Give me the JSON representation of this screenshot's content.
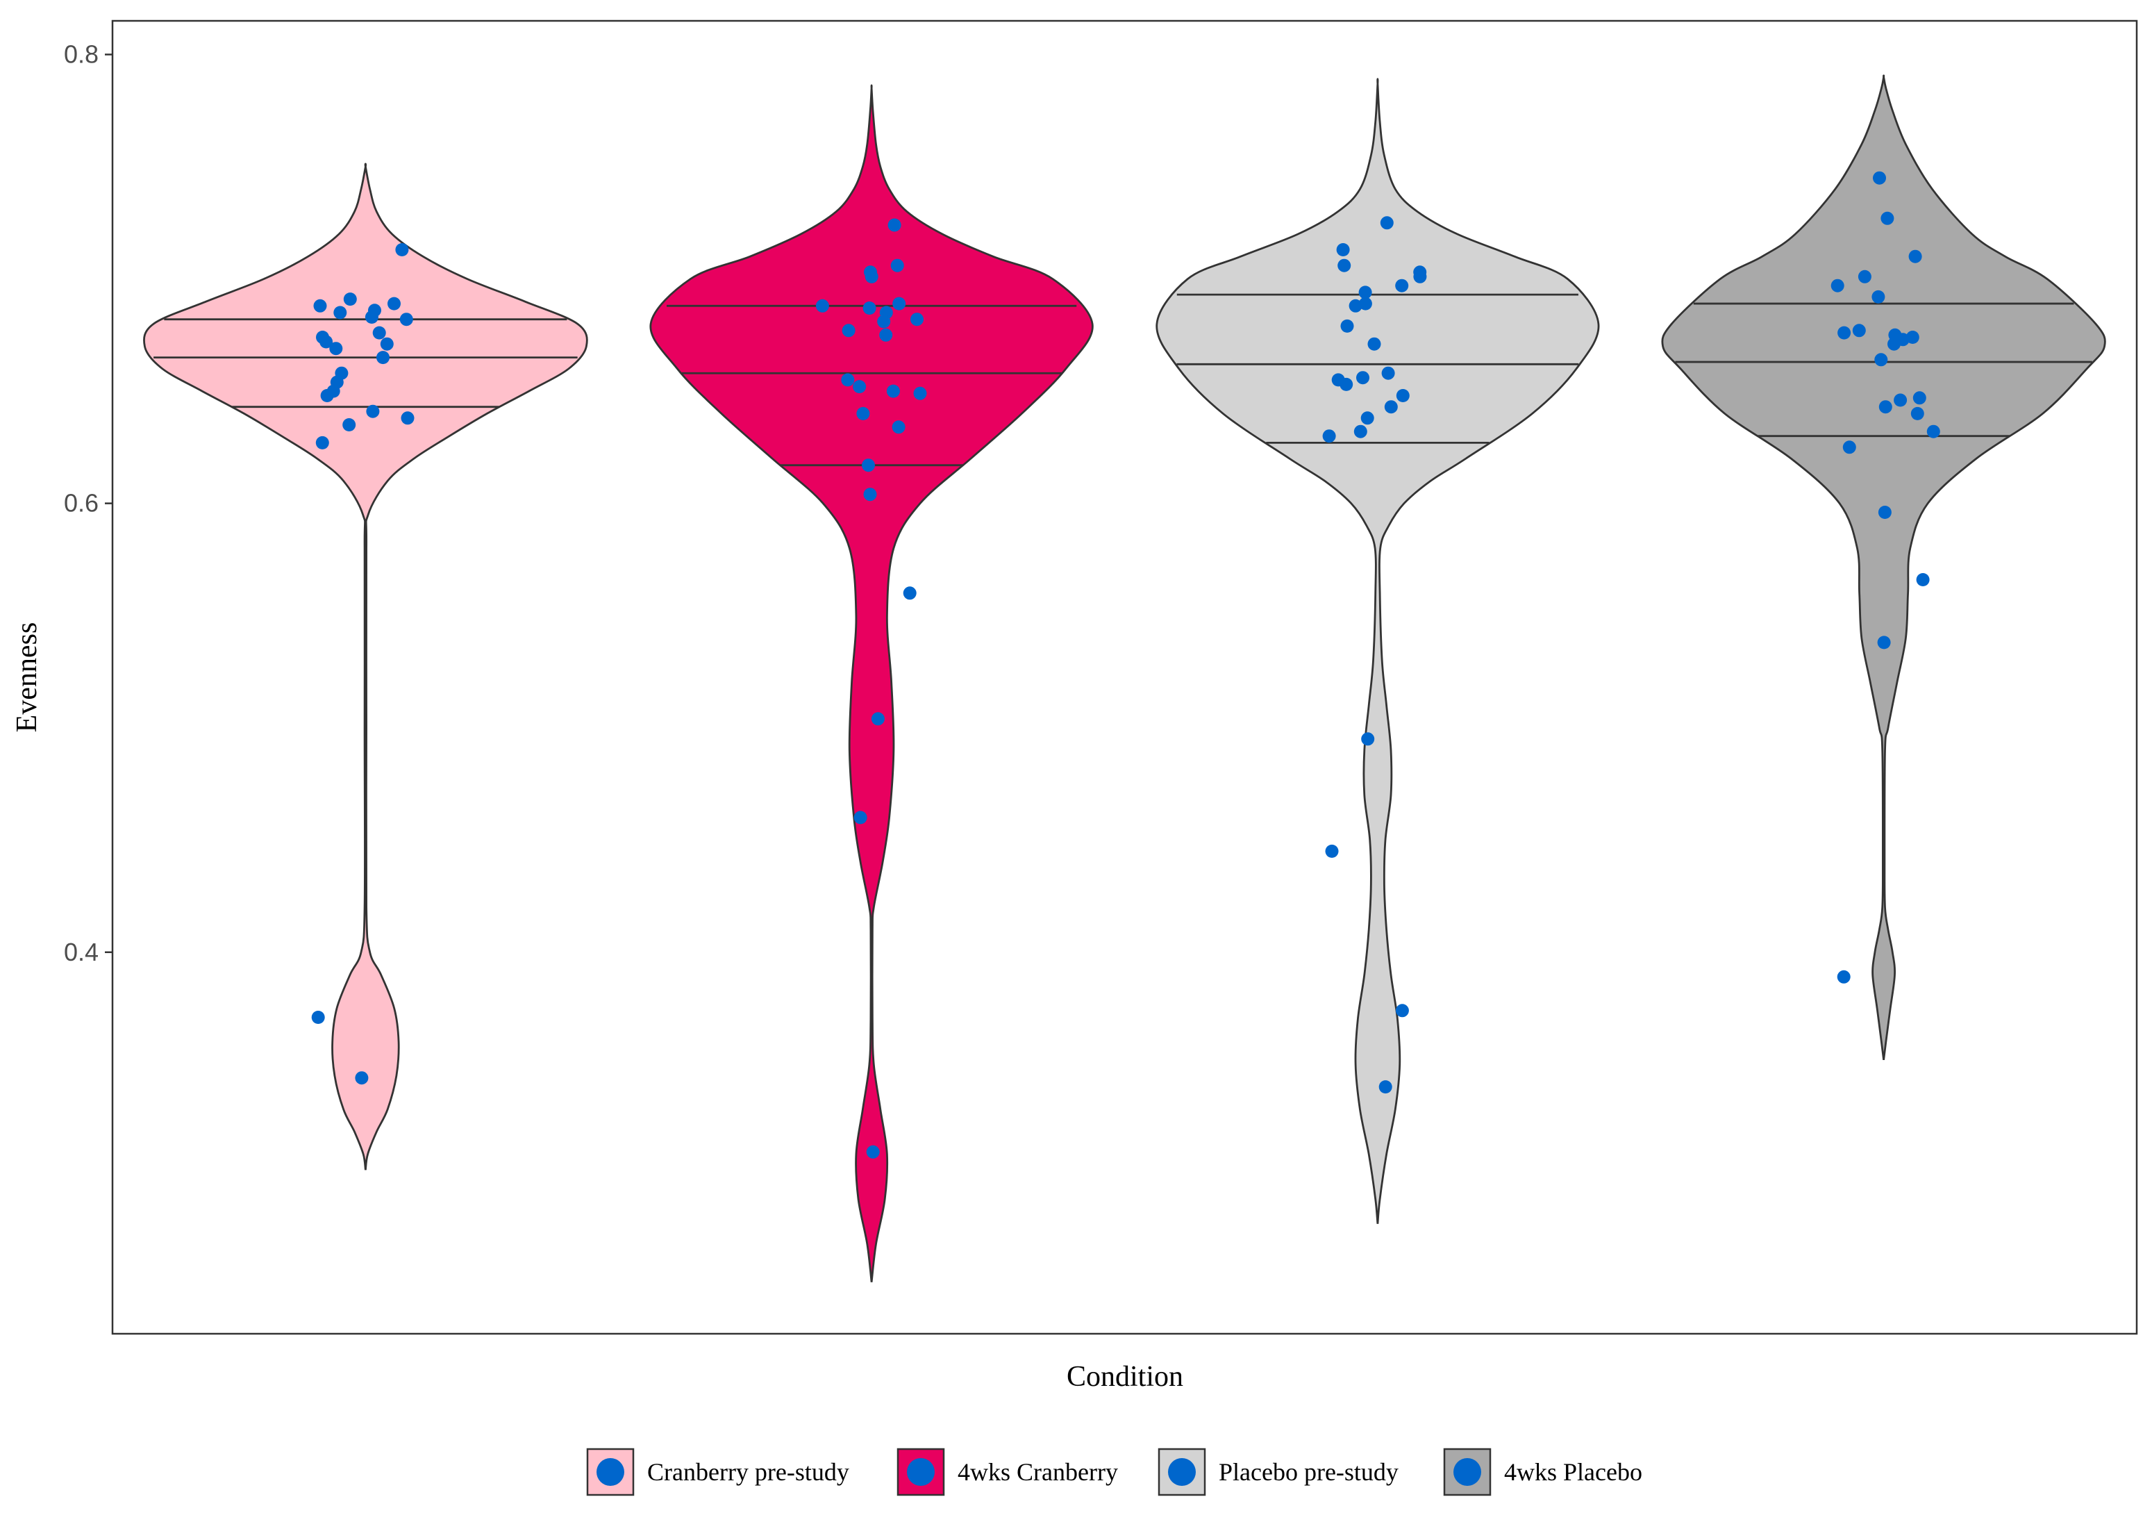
{
  "chart_data": {
    "type": "violin",
    "title": "",
    "xlabel": "Condition",
    "ylabel": "Evenness",
    "ylim": [
      0.23,
      0.815
    ],
    "yticks": [
      0.4,
      0.6,
      0.8
    ],
    "ytick_labels": [
      "0.4",
      "0.6",
      "0.8"
    ],
    "grid": false,
    "legend_position": "bottom",
    "point_color": "#0066CC",
    "series": [
      {
        "name": "Cranberry pre-study",
        "color": "#FFC0CB",
        "quantiles": [
          0.643,
          0.665,
          0.682
        ],
        "density": [
          [
            0.303,
            0
          ],
          [
            0.31,
            0.01
          ],
          [
            0.32,
            0.05
          ],
          [
            0.33,
            0.1
          ],
          [
            0.345,
            0.14
          ],
          [
            0.36,
            0.15
          ],
          [
            0.375,
            0.13
          ],
          [
            0.39,
            0.07
          ],
          [
            0.4,
            0.02
          ],
          [
            0.42,
            0.004
          ],
          [
            0.5,
            0.004
          ],
          [
            0.58,
            0.004
          ],
          [
            0.595,
            0.012
          ],
          [
            0.61,
            0.1
          ],
          [
            0.62,
            0.22
          ],
          [
            0.63,
            0.38
          ],
          [
            0.64,
            0.55
          ],
          [
            0.65,
            0.74
          ],
          [
            0.66,
            0.92
          ],
          [
            0.67,
            1.0
          ],
          [
            0.68,
            0.96
          ],
          [
            0.69,
            0.72
          ],
          [
            0.7,
            0.46
          ],
          [
            0.71,
            0.26
          ],
          [
            0.72,
            0.12
          ],
          [
            0.73,
            0.05
          ],
          [
            0.74,
            0.02
          ],
          [
            0.75,
            0
          ]
        ],
        "points": [
          0.713,
          0.691,
          0.689,
          0.688,
          0.686,
          0.685,
          0.683,
          0.682,
          0.676,
          0.674,
          0.672,
          0.671,
          0.669,
          0.665,
          0.658,
          0.654,
          0.65,
          0.648,
          0.641,
          0.638,
          0.635,
          0.627,
          0.371,
          0.344
        ]
      },
      {
        "name": "4wks Cranberry",
        "color": "#E8005F",
        "quantiles": [
          0.617,
          0.658,
          0.688
        ],
        "density": [
          [
            0.253,
            0
          ],
          [
            0.27,
            0.02
          ],
          [
            0.29,
            0.06
          ],
          [
            0.31,
            0.07
          ],
          [
            0.33,
            0.04
          ],
          [
            0.35,
            0.01
          ],
          [
            0.37,
            0.004
          ],
          [
            0.41,
            0.004
          ],
          [
            0.42,
            0.01
          ],
          [
            0.44,
            0.05
          ],
          [
            0.46,
            0.08
          ],
          [
            0.49,
            0.1
          ],
          [
            0.52,
            0.09
          ],
          [
            0.55,
            0.07
          ],
          [
            0.58,
            0.1
          ],
          [
            0.6,
            0.22
          ],
          [
            0.62,
            0.45
          ],
          [
            0.64,
            0.68
          ],
          [
            0.66,
            0.88
          ],
          [
            0.68,
            1.0
          ],
          [
            0.7,
            0.82
          ],
          [
            0.71,
            0.55
          ],
          [
            0.72,
            0.32
          ],
          [
            0.73,
            0.16
          ],
          [
            0.74,
            0.08
          ],
          [
            0.75,
            0.04
          ],
          [
            0.76,
            0.02
          ],
          [
            0.775,
            0.006
          ],
          [
            0.785,
            0
          ]
        ],
        "points": [
          0.724,
          0.706,
          0.703,
          0.701,
          0.689,
          0.688,
          0.687,
          0.685,
          0.682,
          0.681,
          0.677,
          0.675,
          0.655,
          0.652,
          0.65,
          0.649,
          0.64,
          0.634,
          0.617,
          0.604,
          0.56,
          0.504,
          0.46,
          0.311
        ]
      },
      {
        "name": "Placebo pre-study",
        "color": "#D3D3D3",
        "quantiles": [
          0.627,
          0.662,
          0.693
        ],
        "density": [
          [
            0.279,
            0
          ],
          [
            0.29,
            0.01
          ],
          [
            0.31,
            0.04
          ],
          [
            0.33,
            0.08
          ],
          [
            0.35,
            0.1
          ],
          [
            0.37,
            0.09
          ],
          [
            0.39,
            0.06
          ],
          [
            0.41,
            0.04
          ],
          [
            0.43,
            0.03
          ],
          [
            0.45,
            0.035
          ],
          [
            0.47,
            0.06
          ],
          [
            0.49,
            0.06
          ],
          [
            0.51,
            0.04
          ],
          [
            0.53,
            0.02
          ],
          [
            0.56,
            0.01
          ],
          [
            0.58,
            0.012
          ],
          [
            0.59,
            0.05
          ],
          [
            0.6,
            0.12
          ],
          [
            0.61,
            0.24
          ],
          [
            0.62,
            0.4
          ],
          [
            0.64,
            0.7
          ],
          [
            0.66,
            0.9
          ],
          [
            0.68,
            1.0
          ],
          [
            0.7,
            0.86
          ],
          [
            0.71,
            0.62
          ],
          [
            0.72,
            0.36
          ],
          [
            0.73,
            0.18
          ],
          [
            0.74,
            0.08
          ],
          [
            0.755,
            0.03
          ],
          [
            0.77,
            0.01
          ],
          [
            0.787,
            0
          ]
        ],
        "points": [
          0.725,
          0.713,
          0.706,
          0.703,
          0.701,
          0.697,
          0.694,
          0.689,
          0.688,
          0.679,
          0.671,
          0.658,
          0.656,
          0.655,
          0.653,
          0.648,
          0.643,
          0.638,
          0.632,
          0.63,
          0.495,
          0.445,
          0.374,
          0.34
        ]
      },
      {
        "name": "4wks Placebo",
        "color": "#A9A9A9",
        "quantiles": [
          0.63,
          0.663,
          0.689
        ],
        "density": [
          [
            0.352,
            0
          ],
          [
            0.36,
            0.01
          ],
          [
            0.375,
            0.03
          ],
          [
            0.39,
            0.05
          ],
          [
            0.4,
            0.04
          ],
          [
            0.41,
            0.02
          ],
          [
            0.42,
            0.006
          ],
          [
            0.44,
            0.004
          ],
          [
            0.49,
            0.006
          ],
          [
            0.5,
            0.02
          ],
          [
            0.52,
            0.06
          ],
          [
            0.54,
            0.1
          ],
          [
            0.56,
            0.11
          ],
          [
            0.58,
            0.12
          ],
          [
            0.6,
            0.2
          ],
          [
            0.62,
            0.42
          ],
          [
            0.64,
            0.72
          ],
          [
            0.66,
            0.92
          ],
          [
            0.67,
            1.0
          ],
          [
            0.68,
            0.96
          ],
          [
            0.7,
            0.74
          ],
          [
            0.71,
            0.55
          ],
          [
            0.72,
            0.4
          ],
          [
            0.74,
            0.22
          ],
          [
            0.76,
            0.1
          ],
          [
            0.775,
            0.04
          ],
          [
            0.785,
            0.01
          ],
          [
            0.79,
            0
          ]
        ],
        "points": [
          0.745,
          0.727,
          0.71,
          0.701,
          0.697,
          0.692,
          0.677,
          0.676,
          0.675,
          0.674,
          0.673,
          0.671,
          0.664,
          0.647,
          0.646,
          0.643,
          0.64,
          0.632,
          0.625,
          0.596,
          0.566,
          0.538,
          0.389
        ]
      }
    ]
  }
}
